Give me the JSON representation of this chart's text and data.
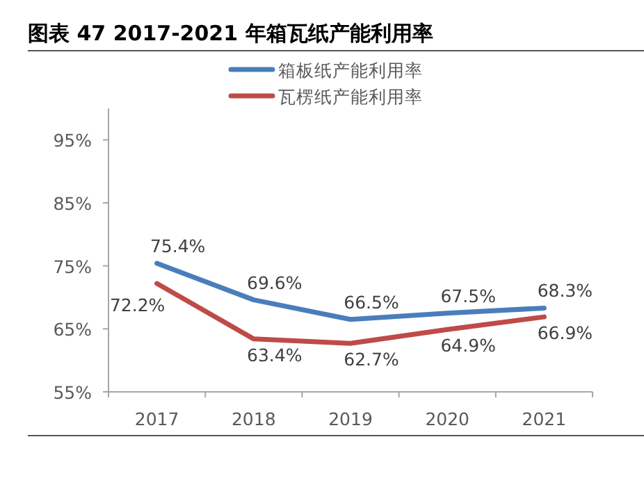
{
  "chart_data": {
    "type": "line",
    "title": "图表 47 2017-2021 年箱瓦纸产能利用率",
    "categories": [
      "2017",
      "2018",
      "2019",
      "2020",
      "2021"
    ],
    "series": [
      {
        "name": "箱板纸产能利用率",
        "color": "#4a7ebb",
        "values": [
          75.4,
          69.6,
          66.5,
          67.5,
          68.3
        ],
        "value_labels": [
          "75.4%",
          "69.6%",
          "66.5%",
          "67.5%",
          "68.3%"
        ]
      },
      {
        "name": "瓦楞纸产能利用率",
        "color": "#be4b48",
        "values": [
          72.2,
          63.4,
          62.7,
          64.9,
          66.9
        ],
        "value_labels": [
          "72.2%",
          "63.4%",
          "62.7%",
          "64.9%",
          "66.9%"
        ]
      }
    ],
    "ylim": [
      55,
      100
    ],
    "yticks": [
      {
        "value": 55,
        "label": "55%"
      },
      {
        "value": 65,
        "label": "65%"
      },
      {
        "value": 75,
        "label": "75%"
      },
      {
        "value": 85,
        "label": "85%"
      },
      {
        "value": 95,
        "label": "95%"
      }
    ],
    "legend": "top",
    "grid": false,
    "marker": "none",
    "line_style": "solid"
  }
}
